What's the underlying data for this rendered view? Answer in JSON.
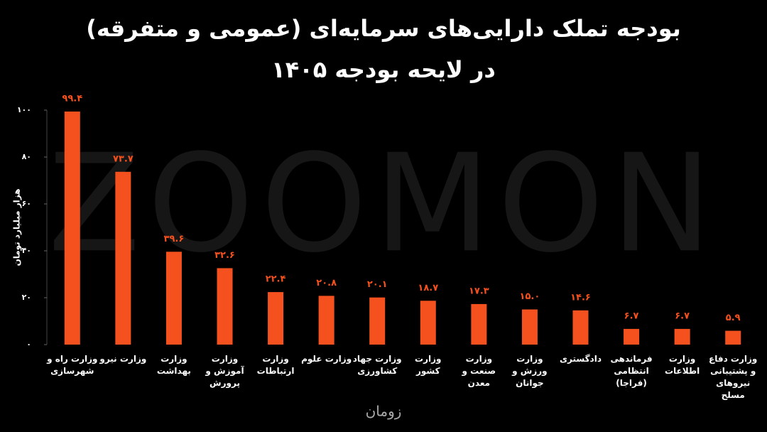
{
  "chart_data": {
    "type": "bar",
    "title": "بودجه تملک دارایی‌های سرمایه‌ای (عمومی و متفرقه)",
    "subtitle": "در لایحه بودجه ۱۴۰۵",
    "y_label": "هزار میلیارد تومان",
    "watermark": "ZOOMON",
    "brand": "زومان",
    "categories": [
      "وزارت راه و شهرسازی",
      "وزارت نیرو",
      "وزارت بهداشت",
      "وزارت آموزش و پرورش",
      "وزارت ارتباطات",
      "وزارت علوم",
      "وزارت جهاد کشاورزی",
      "وزارت کشور",
      "وزارت صنعت و معدن",
      "وزارت ورزش و جوانان",
      "دادگستری",
      "فرماندهی انتظامی (فراجا)",
      "وزارت اطلاعات",
      "وزارت دفاع و پشتیبانی نیروهای مسلح"
    ],
    "values": [
      99.4,
      73.7,
      39.6,
      32.6,
      22.4,
      20.8,
      20.1,
      18.7,
      17.3,
      15.0,
      14.6,
      6.7,
      6.7,
      5.9
    ],
    "value_labels": [
      "۹۹.۴",
      "۷۳.۷",
      "۳۹.۶",
      "۳۲.۶",
      "۲۲.۴",
      "۲۰.۸",
      "۲۰.۱",
      "۱۸.۷",
      "۱۷.۳",
      "۱۵.۰",
      "۱۴.۶",
      "۶.۷",
      "۶.۷",
      "۵.۹"
    ],
    "color": "#f4511e",
    "ylim": [
      0,
      100
    ],
    "yticks": [
      {
        "value": 0,
        "label": "۰"
      },
      {
        "value": 20,
        "label": "۲۰"
      },
      {
        "value": 40,
        "label": "۴۰"
      },
      {
        "value": 60,
        "label": "۶۰"
      },
      {
        "value": 80,
        "label": "۸۰"
      },
      {
        "value": 100,
        "label": "۱۰۰"
      }
    ],
    "grid": false
  }
}
